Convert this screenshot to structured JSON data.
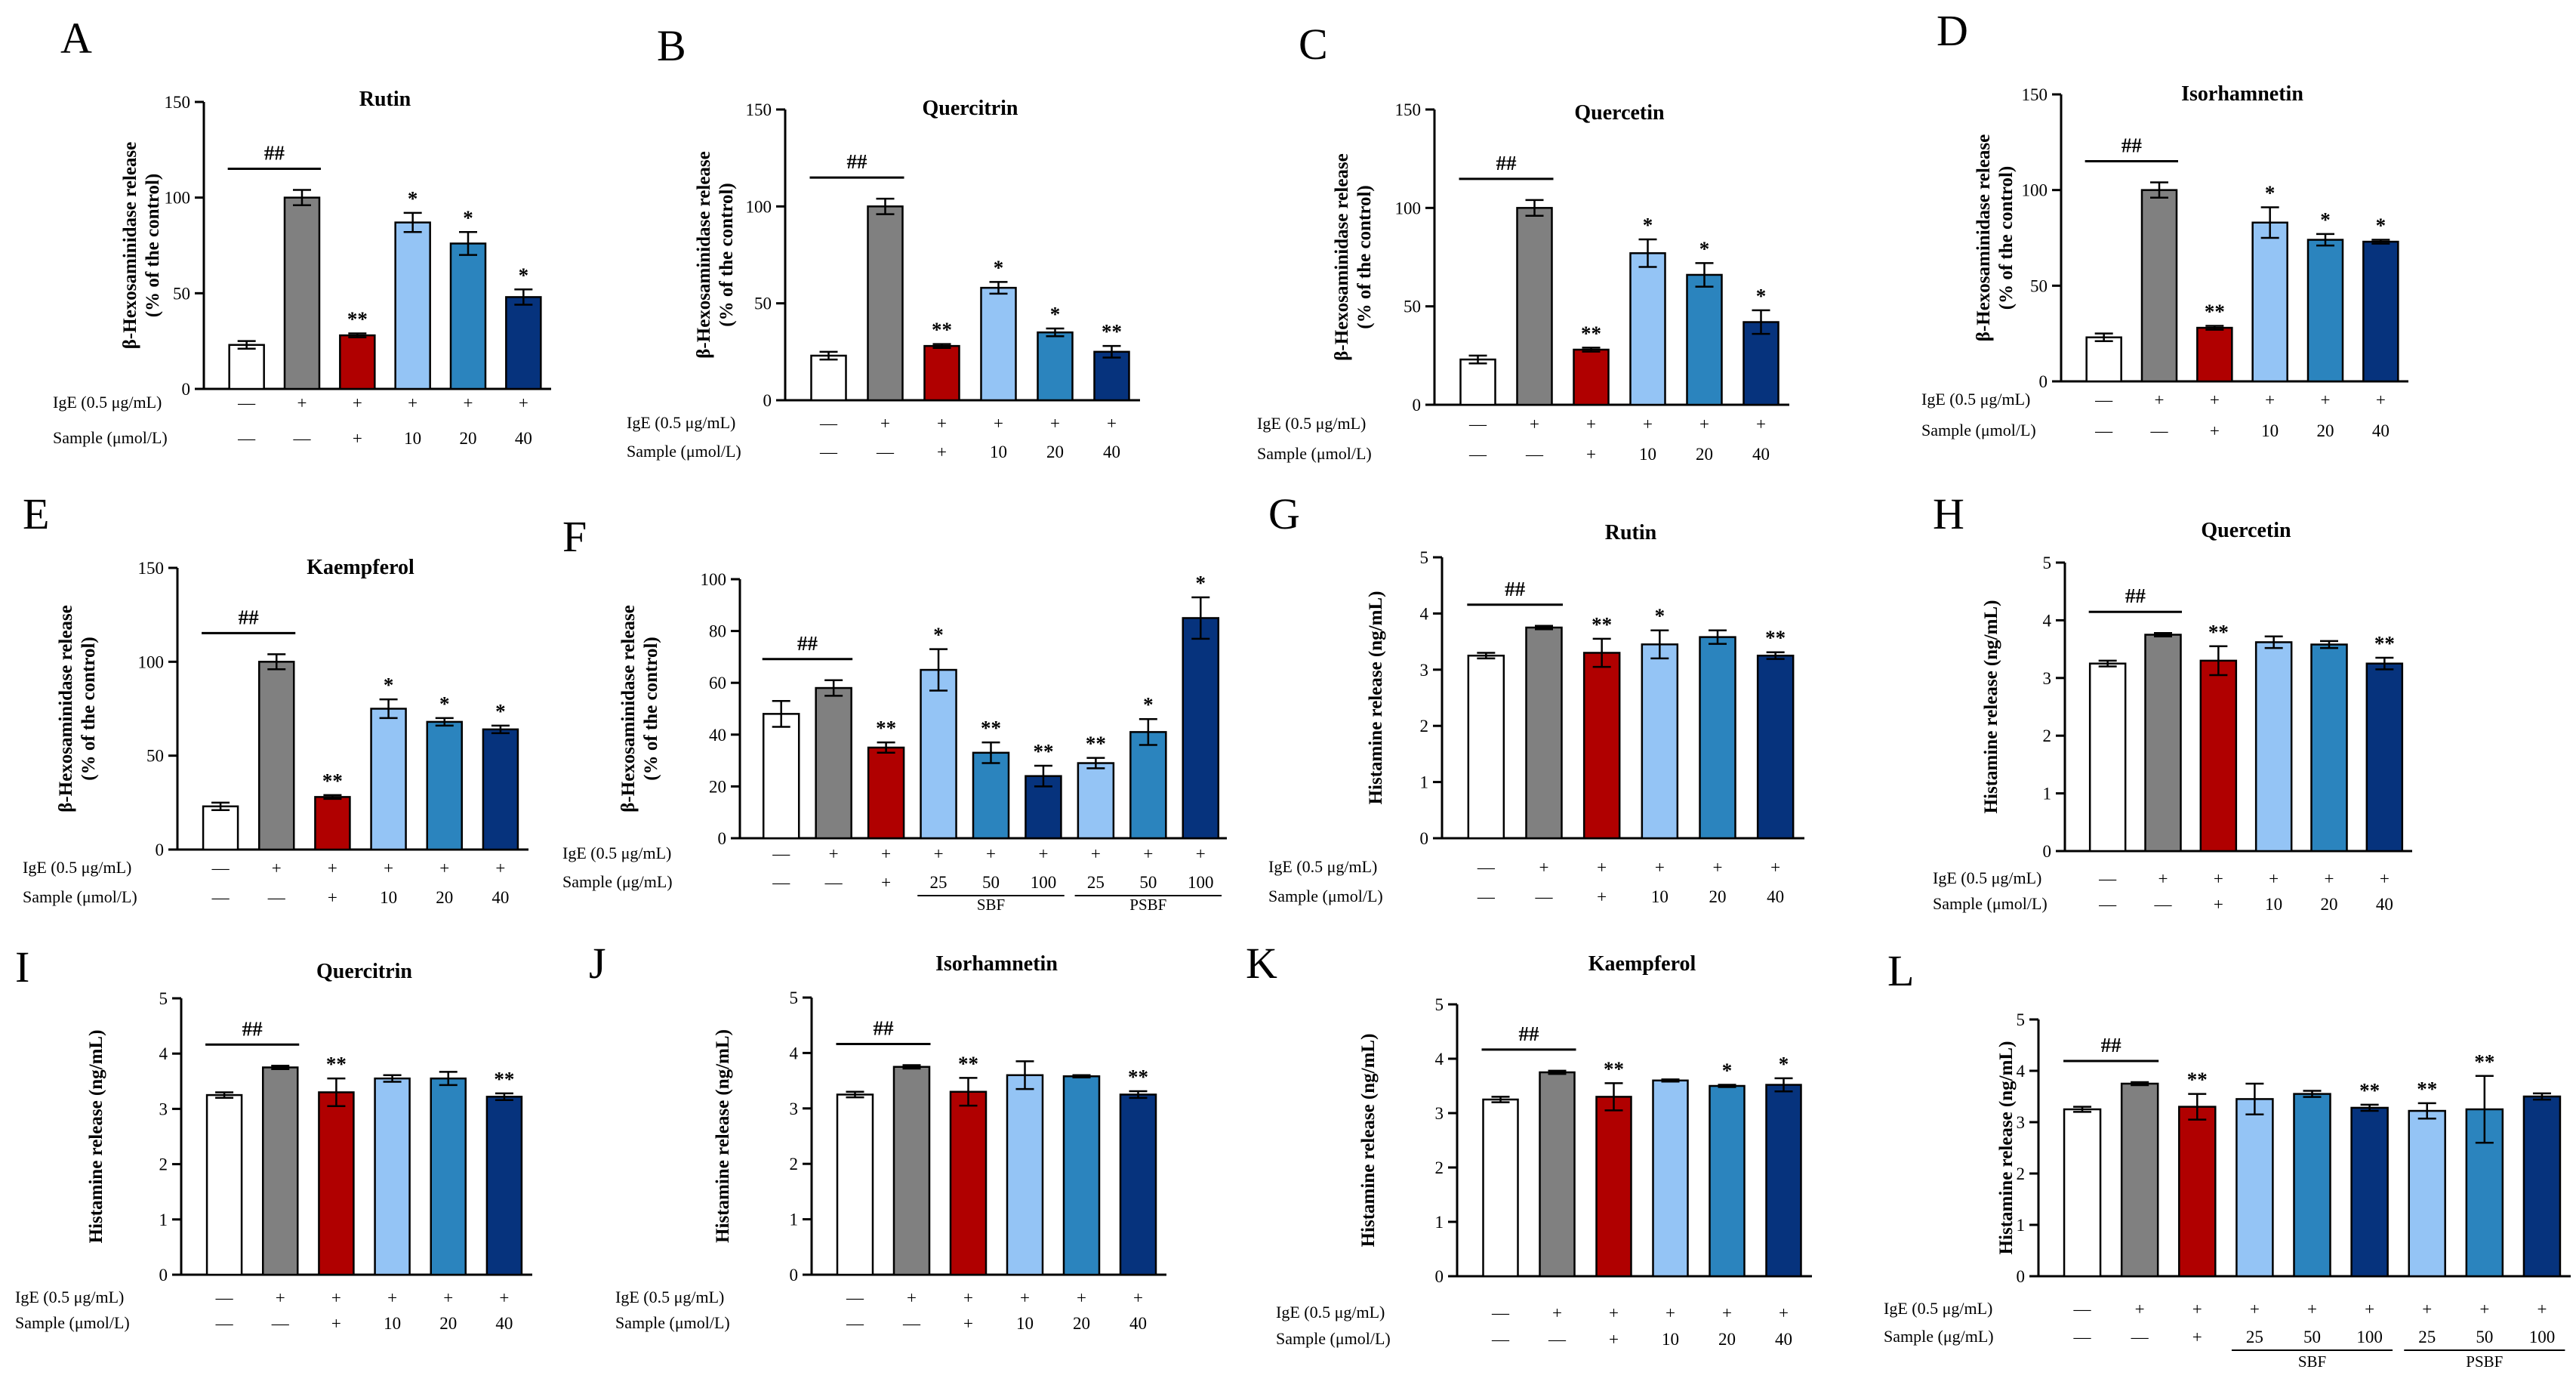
{
  "figure": {
    "sign_plus": "+",
    "sign_minus": "—",
    "hash_sig": "##"
  },
  "colors": {
    "control": "#ffffff",
    "ige": "#808080",
    "positive": "#b00000",
    "sbf_low": "#94c4f5",
    "sbf_mid": "#2b84be",
    "sbf_high": "#06337d",
    "edge": "#000000"
  },
  "chart_data": [
    {
      "panel": "A",
      "type": "bar",
      "title": "Rutin",
      "ylabel_lines": [
        "β-Hexosaminidase release",
        "(% of the control)"
      ],
      "ylim": [
        0,
        150
      ],
      "yticks": [
        0,
        50,
        100,
        150
      ],
      "row_labels": [
        "IgE (0.5 μg/mL)",
        "Sample (μmol/L)"
      ],
      "rows": [
        [
          "—",
          "+",
          "+",
          "+",
          "+",
          "+"
        ],
        [
          "—",
          "—",
          "+",
          "10",
          "20",
          "40"
        ]
      ],
      "values": [
        23,
        100,
        28,
        87,
        76,
        48
      ],
      "errors": [
        2,
        4,
        1,
        5,
        6,
        4
      ],
      "colors": [
        "control",
        "ige",
        "positive",
        "sbf_low",
        "sbf_mid",
        "sbf_high"
      ],
      "sig": [
        "",
        "",
        "**",
        "*",
        "*",
        "*"
      ]
    },
    {
      "panel": "B",
      "type": "bar",
      "title": "Quercitrin",
      "ylabel_lines": [
        "β-Hexosaminidase release",
        "(% of the control)"
      ],
      "ylim": [
        0,
        150
      ],
      "yticks": [
        0,
        50,
        100,
        150
      ],
      "row_labels": [
        "IgE (0.5 μg/mL)",
        "Sample (μmol/L)"
      ],
      "rows": [
        [
          "—",
          "+",
          "+",
          "+",
          "+",
          "+"
        ],
        [
          "—",
          "—",
          "+",
          "10",
          "20",
          "40"
        ]
      ],
      "values": [
        23,
        100,
        28,
        58,
        35,
        25
      ],
      "errors": [
        2,
        4,
        1,
        3,
        2,
        3
      ],
      "colors": [
        "control",
        "ige",
        "positive",
        "sbf_low",
        "sbf_mid",
        "sbf_high"
      ],
      "sig": [
        "",
        "",
        "**",
        "*",
        "*",
        "**"
      ]
    },
    {
      "panel": "C",
      "type": "bar",
      "title": "Quercetin",
      "ylabel_lines": [
        "β-Hexosaminidase release",
        "(% of the control)"
      ],
      "ylim": [
        0,
        150
      ],
      "yticks": [
        0,
        50,
        100,
        150
      ],
      "row_labels": [
        "IgE (0.5 μg/mL)",
        "Sample (μmol/L)"
      ],
      "rows": [
        [
          "—",
          "+",
          "+",
          "+",
          "+",
          "+"
        ],
        [
          "—",
          "—",
          "+",
          "10",
          "20",
          "40"
        ]
      ],
      "values": [
        23,
        100,
        28,
        77,
        66,
        42
      ],
      "errors": [
        2,
        4,
        1,
        7,
        6,
        6
      ],
      "colors": [
        "control",
        "ige",
        "positive",
        "sbf_low",
        "sbf_mid",
        "sbf_high"
      ],
      "sig": [
        "",
        "",
        "**",
        "*",
        "*",
        "*"
      ]
    },
    {
      "panel": "D",
      "type": "bar",
      "title": "Isorhamnetin",
      "ylabel_lines": [
        "β-Hexosaminidase release",
        "(% of the control)"
      ],
      "ylim": [
        0,
        150
      ],
      "yticks": [
        0,
        50,
        100,
        150
      ],
      "row_labels": [
        "IgE (0.5 μg/mL)",
        "Sample (μmol/L)"
      ],
      "rows": [
        [
          "—",
          "+",
          "+",
          "+",
          "+",
          "+"
        ],
        [
          "—",
          "—",
          "+",
          "10",
          "20",
          "40"
        ]
      ],
      "values": [
        23,
        100,
        28,
        83,
        74,
        73
      ],
      "errors": [
        2,
        4,
        1,
        8,
        3,
        1
      ],
      "colors": [
        "control",
        "ige",
        "positive",
        "sbf_low",
        "sbf_mid",
        "sbf_high"
      ],
      "sig": [
        "",
        "",
        "**",
        "*",
        "*",
        "*"
      ]
    },
    {
      "panel": "E",
      "type": "bar",
      "title": "Kaempferol",
      "ylabel_lines": [
        "β-Hexosaminidase release",
        "(% of the control)"
      ],
      "ylim": [
        0,
        150
      ],
      "yticks": [
        0,
        50,
        100,
        150
      ],
      "row_labels": [
        "IgE (0.5 μg/mL)",
        "Sample (μmol/L)"
      ],
      "rows": [
        [
          "—",
          "+",
          "+",
          "+",
          "+",
          "+"
        ],
        [
          "—",
          "—",
          "+",
          "10",
          "20",
          "40"
        ]
      ],
      "values": [
        23,
        100,
        28,
        75,
        68,
        64
      ],
      "errors": [
        2,
        4,
        1,
        5,
        2,
        2
      ],
      "colors": [
        "control",
        "ige",
        "positive",
        "sbf_low",
        "sbf_mid",
        "sbf_high"
      ],
      "sig": [
        "",
        "",
        "**",
        "*",
        "*",
        "*"
      ]
    },
    {
      "panel": "F",
      "type": "bar",
      "title": "",
      "ylabel_lines": [
        "β-Hexosaminidase release",
        "(% of the control)"
      ],
      "ylim": [
        0,
        100
      ],
      "yticks": [
        0,
        20,
        40,
        60,
        80,
        100
      ],
      "row_labels": [
        "IgE (0.5 μg/mL)",
        "Sample (μg/mL)"
      ],
      "rows": [
        [
          "—",
          "+",
          "+",
          "+",
          "+",
          "+",
          "+",
          "+",
          "+"
        ],
        [
          "—",
          "—",
          "+",
          "25",
          "50",
          "100",
          "25",
          "50",
          "100"
        ]
      ],
      "groups": [
        {
          "label": "SBF",
          "from": 3,
          "to": 5
        },
        {
          "label": "PSBF",
          "from": 6,
          "to": 8
        }
      ],
      "values": [
        48,
        58,
        35,
        65,
        33,
        24,
        29,
        41,
        85
      ],
      "errors": [
        5,
        3,
        2,
        8,
        4,
        4,
        2,
        5,
        8
      ],
      "colors": [
        "control",
        "ige",
        "positive",
        "sbf_low",
        "sbf_mid",
        "sbf_high",
        "sbf_low",
        "sbf_mid",
        "sbf_high"
      ],
      "sig": [
        "",
        "",
        "**",
        "*",
        "**",
        "**",
        "**",
        "*",
        "*"
      ]
    },
    {
      "panel": "G",
      "type": "bar",
      "title": "Rutin",
      "ylabel_lines": [
        "Histamine release (ng/mL)"
      ],
      "ylim": [
        0,
        5
      ],
      "yticks": [
        0,
        1,
        2,
        3,
        4,
        5
      ],
      "row_labels": [
        "IgE (0.5 μg/mL)",
        "Sample (μmol/L)"
      ],
      "rows": [
        [
          "—",
          "+",
          "+",
          "+",
          "+",
          "+"
        ],
        [
          "—",
          "—",
          "+",
          "10",
          "20",
          "40"
        ]
      ],
      "values": [
        3.25,
        3.75,
        3.3,
        3.45,
        3.58,
        3.25
      ],
      "errors": [
        0.05,
        0.03,
        0.25,
        0.25,
        0.12,
        0.06
      ],
      "colors": [
        "control",
        "ige",
        "positive",
        "sbf_low",
        "sbf_mid",
        "sbf_high"
      ],
      "sig": [
        "",
        "",
        "**",
        "*",
        "",
        "**"
      ]
    },
    {
      "panel": "H",
      "type": "bar",
      "title": "Quercetin",
      "ylabel_lines": [
        "Histamine release (ng/mL)"
      ],
      "ylim": [
        0,
        5
      ],
      "yticks": [
        0,
        1,
        2,
        3,
        4,
        5
      ],
      "row_labels": [
        "IgE (0.5 μg/mL)",
        "Sample (μmol/L)"
      ],
      "rows": [
        [
          "—",
          "+",
          "+",
          "+",
          "+",
          "+"
        ],
        [
          "—",
          "—",
          "+",
          "10",
          "20",
          "40"
        ]
      ],
      "values": [
        3.25,
        3.75,
        3.3,
        3.62,
        3.58,
        3.25
      ],
      "errors": [
        0.05,
        0.03,
        0.25,
        0.1,
        0.06,
        0.1
      ],
      "colors": [
        "control",
        "ige",
        "positive",
        "sbf_low",
        "sbf_mid",
        "sbf_high"
      ],
      "sig": [
        "",
        "",
        "**",
        "",
        "",
        "**"
      ]
    },
    {
      "panel": "I",
      "type": "bar",
      "title": "Quercitrin",
      "ylabel_lines": [
        "Histamine release (ng/mL)"
      ],
      "ylim": [
        0,
        5
      ],
      "yticks": [
        0,
        1,
        2,
        3,
        4,
        5
      ],
      "row_labels": [
        "IgE (0.5 μg/mL)",
        "Sample (μmol/L)"
      ],
      "rows": [
        [
          "—",
          "+",
          "+",
          "+",
          "+",
          "+"
        ],
        [
          "—",
          "—",
          "+",
          "10",
          "20",
          "40"
        ]
      ],
      "values": [
        3.25,
        3.75,
        3.3,
        3.55,
        3.55,
        3.22
      ],
      "errors": [
        0.05,
        0.03,
        0.25,
        0.06,
        0.12,
        0.06
      ],
      "colors": [
        "control",
        "ige",
        "positive",
        "sbf_low",
        "sbf_mid",
        "sbf_high"
      ],
      "sig": [
        "",
        "",
        "**",
        "",
        "",
        "**"
      ]
    },
    {
      "panel": "J",
      "type": "bar",
      "title": "Isorhamnetin",
      "ylabel_lines": [
        "Histamine release (ng/mL)"
      ],
      "ylim": [
        0,
        5
      ],
      "yticks": [
        0,
        1,
        2,
        3,
        4,
        5
      ],
      "row_labels": [
        "IgE (0.5 μg/mL)",
        "Sample (μmol/L)"
      ],
      "rows": [
        [
          "—",
          "+",
          "+",
          "+",
          "+",
          "+"
        ],
        [
          "—",
          "—",
          "+",
          "10",
          "20",
          "40"
        ]
      ],
      "values": [
        3.25,
        3.75,
        3.3,
        3.6,
        3.58,
        3.25
      ],
      "errors": [
        0.05,
        0.03,
        0.25,
        0.25,
        0.02,
        0.06
      ],
      "colors": [
        "control",
        "ige",
        "positive",
        "sbf_low",
        "sbf_mid",
        "sbf_high"
      ],
      "sig": [
        "",
        "",
        "**",
        "",
        "",
        "**"
      ]
    },
    {
      "panel": "K",
      "type": "bar",
      "title": "Kaempferol",
      "ylabel_lines": [
        "Histamine release (ng/mL)"
      ],
      "ylim": [
        0,
        5
      ],
      "yticks": [
        0,
        1,
        2,
        3,
        4,
        5
      ],
      "row_labels": [
        "IgE (0.5 μg/mL)",
        "Sample (μmol/L)"
      ],
      "rows": [
        [
          "—",
          "+",
          "+",
          "+",
          "+",
          "+"
        ],
        [
          "—",
          "—",
          "+",
          "10",
          "20",
          "40"
        ]
      ],
      "values": [
        3.25,
        3.75,
        3.3,
        3.6,
        3.5,
        3.52
      ],
      "errors": [
        0.05,
        0.03,
        0.25,
        0.02,
        0.02,
        0.12
      ],
      "colors": [
        "control",
        "ige",
        "positive",
        "sbf_low",
        "sbf_mid",
        "sbf_high"
      ],
      "sig": [
        "",
        "",
        "**",
        "",
        "*",
        "*"
      ]
    },
    {
      "panel": "L",
      "type": "bar",
      "title": "",
      "ylabel_lines": [
        "Histamine release (ng/mL)"
      ],
      "ylim": [
        0,
        5
      ],
      "yticks": [
        0,
        1,
        2,
        3,
        4,
        5
      ],
      "row_labels": [
        "IgE (0.5 μg/mL)",
        "Sample (μg/mL)"
      ],
      "rows": [
        [
          "—",
          "+",
          "+",
          "+",
          "+",
          "+",
          "+",
          "+",
          "+"
        ],
        [
          "—",
          "—",
          "+",
          "25",
          "50",
          "100",
          "25",
          "50",
          "100"
        ]
      ],
      "groups": [
        {
          "label": "SBF",
          "from": 3,
          "to": 5
        },
        {
          "label": "PSBF",
          "from": 6,
          "to": 8
        }
      ],
      "values": [
        3.25,
        3.75,
        3.3,
        3.45,
        3.55,
        3.28,
        3.22,
        3.25,
        3.5
      ],
      "errors": [
        0.05,
        0.03,
        0.25,
        0.3,
        0.06,
        0.06,
        0.15,
        0.65,
        0.06
      ],
      "colors": [
        "control",
        "ige",
        "positive",
        "sbf_low",
        "sbf_mid",
        "sbf_high",
        "sbf_low",
        "sbf_mid",
        "sbf_high"
      ],
      "sig": [
        "",
        "",
        "**",
        "",
        "",
        "**",
        "**",
        "**",
        ""
      ]
    }
  ]
}
